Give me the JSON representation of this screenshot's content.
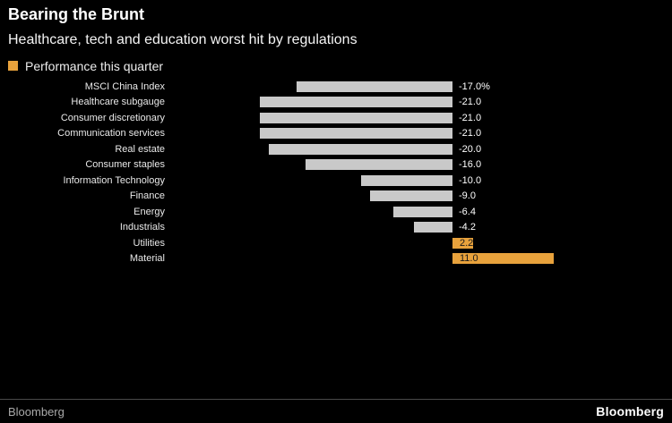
{
  "header": {
    "title": "Bearing the Brunt",
    "subtitle": "Healthcare, tech and education worst hit by regulations"
  },
  "legend": {
    "label": "Performance this quarter"
  },
  "colors": {
    "background": "#000000",
    "bar_negative": "#c9c9c9",
    "bar_positive": "#e8a23c",
    "value_label_negative": "#ffffff",
    "value_label_positive": "#1a1a1a"
  },
  "chart_data": {
    "type": "bar",
    "orientation": "horizontal",
    "title": "Bearing the Brunt",
    "subtitle": "Healthcare, tech and education worst hit by regulations",
    "series_name": "Performance this quarter",
    "categories": [
      "MSCI China Index",
      "Healthcare subgauge",
      "Consumer discretionary",
      "Communication services",
      "Real estate",
      "Consumer staples",
      "Information Technology",
      "Finance",
      "Energy",
      "Industrials",
      "Utilities",
      "Material"
    ],
    "values": [
      -17.0,
      -21.0,
      -21.0,
      -21.0,
      -20.0,
      -16.0,
      -10.0,
      -9.0,
      -6.4,
      -4.2,
      2.2,
      11.0
    ],
    "value_labels": [
      "-17.0%",
      "-21.0",
      "-21.0",
      "-21.0",
      "-20.0",
      "-16.0",
      "-10.0",
      "-9.0",
      "-6.4",
      "-4.2",
      "2.2",
      "11.0"
    ],
    "xlim": [
      -21,
      11
    ],
    "grid": false,
    "legend_position": "top-left"
  },
  "footer": {
    "source": "Bloomberg",
    "brand": "Bloomberg"
  }
}
